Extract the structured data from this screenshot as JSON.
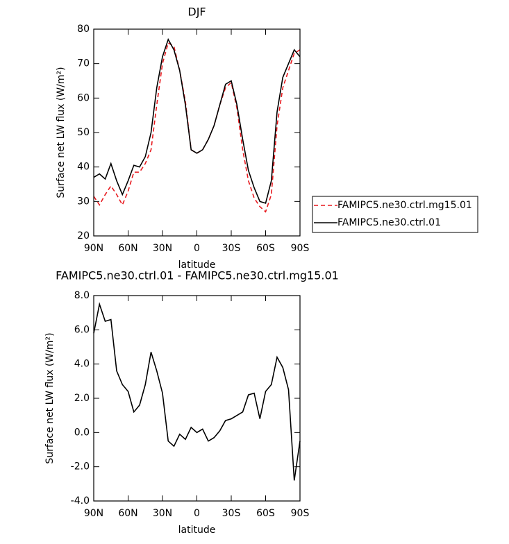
{
  "chart_data": [
    {
      "type": "line",
      "title": "DJF",
      "xlabel": "latitude",
      "ylabel": "Surface net LW flux (W/m²)",
      "x": [
        90,
        85,
        80,
        75,
        70,
        65,
        60,
        55,
        50,
        45,
        40,
        35,
        30,
        25,
        20,
        15,
        10,
        5,
        0,
        -5,
        -10,
        -15,
        -20,
        -25,
        -30,
        -35,
        -40,
        -45,
        -50,
        -55,
        -60,
        -65,
        -70,
        -75,
        -80,
        -85,
        -90
      ],
      "series": [
        {
          "name": "FAMIPC5.ne30.ctrl.mg15.01",
          "color": "#e8191e",
          "line_style": "dashed",
          "values": [
            31.5,
            29,
            32,
            34.5,
            32,
            29,
            33,
            38.5,
            38.5,
            41,
            45,
            58,
            70,
            76,
            75,
            68,
            59,
            45,
            44,
            45,
            48,
            52,
            58,
            63,
            64.5,
            57,
            45,
            36,
            31,
            28.5,
            27,
            32,
            52,
            63,
            68,
            73,
            74
          ]
        },
        {
          "name": "FAMIPC5.ne30.ctrl.01",
          "color": "#000000",
          "line_style": "solid",
          "values": [
            37,
            38,
            36.5,
            41,
            36,
            32,
            36,
            40.5,
            40,
            43,
            50,
            63,
            72,
            77,
            74,
            68,
            58,
            45,
            44,
            45,
            48,
            52,
            58,
            64,
            65,
            58,
            48,
            39,
            34,
            30,
            29.5,
            36,
            56,
            66,
            70,
            74,
            72
          ]
        }
      ],
      "xlim": [
        90,
        -90
      ],
      "xticks": [
        {
          "value": 90,
          "label": "90N"
        },
        {
          "value": 60,
          "label": "60N"
        },
        {
          "value": 30,
          "label": "30N"
        },
        0,
        {
          "value": -30,
          "label": "30S"
        },
        {
          "value": -60,
          "label": "60S"
        },
        {
          "value": -90,
          "label": "90S"
        }
      ],
      "ylim": [
        20,
        80
      ],
      "yticks": [
        20,
        30,
        40,
        50,
        60,
        70,
        80
      ],
      "legend": "right",
      "grid": false
    },
    {
      "type": "line",
      "title": "FAMIPC5.ne30.ctrl.01 - FAMIPC5.ne30.ctrl.mg15.01",
      "xlabel": "latitude",
      "ylabel": "Surface net LW flux (W/m²)",
      "x": [
        90,
        85,
        80,
        75,
        70,
        65,
        60,
        55,
        50,
        45,
        40,
        35,
        30,
        25,
        20,
        15,
        10,
        5,
        0,
        -5,
        -10,
        -15,
        -20,
        -25,
        -30,
        -35,
        -40,
        -45,
        -50,
        -55,
        -60,
        -65,
        -70,
        -75,
        -80,
        -85,
        -90
      ],
      "color": "#000000",
      "line_style": "solid",
      "values": [
        5.8,
        7.5,
        6.5,
        6.6,
        3.6,
        2.8,
        2.4,
        1.2,
        1.6,
        2.8,
        4.7,
        3.6,
        2.3,
        -0.5,
        -0.8,
        -0.1,
        -0.4,
        0.3,
        0.0,
        0.2,
        -0.5,
        -0.3,
        0.1,
        0.7,
        0.8,
        1.0,
        1.2,
        2.2,
        2.3,
        0.8,
        2.4,
        2.8,
        4.4,
        3.8,
        2.5,
        -2.8,
        -0.5
      ],
      "xlim": [
        90,
        -90
      ],
      "xticks": [
        {
          "value": 90,
          "label": "90N"
        },
        {
          "value": 60,
          "label": "60N"
        },
        {
          "value": 30,
          "label": "30N"
        },
        0,
        {
          "value": -30,
          "label": "30S"
        },
        {
          "value": -60,
          "label": "60S"
        },
        {
          "value": -90,
          "label": "90S"
        }
      ],
      "ylim": [
        -4,
        8
      ],
      "yticks": [
        {
          "value": -4,
          "label": "-4.0"
        },
        {
          "value": -2,
          "label": "-2.0"
        },
        {
          "value": 0,
          "label": "0.0"
        },
        {
          "value": 2,
          "label": "2.0"
        },
        {
          "value": 4,
          "label": "4.0"
        },
        {
          "value": 6,
          "label": "6.0"
        },
        {
          "value": 8,
          "label": "8.0"
        }
      ],
      "grid": false
    }
  ]
}
